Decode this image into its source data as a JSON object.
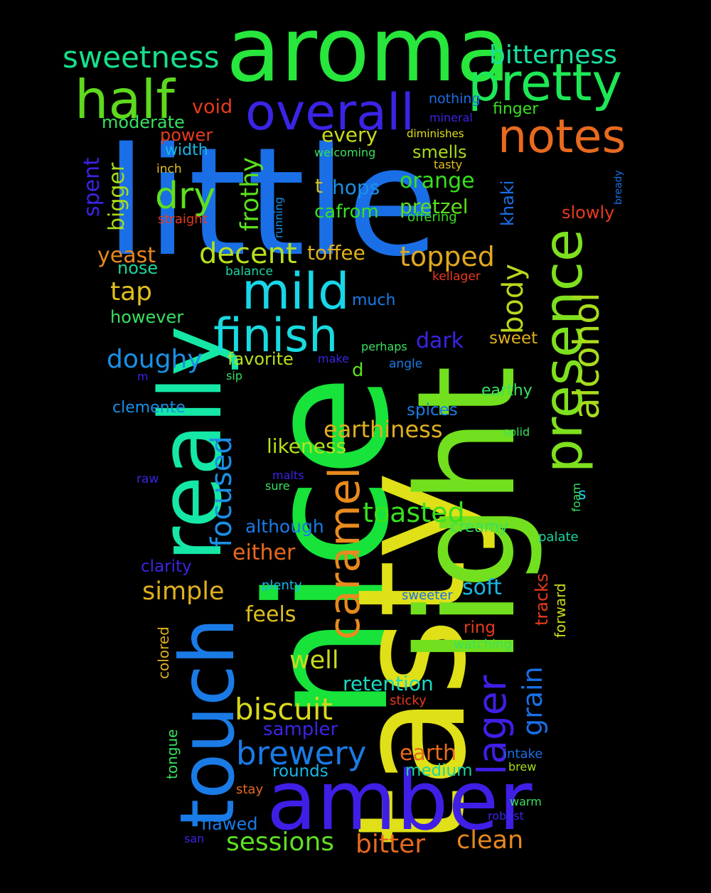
{
  "words": [
    {
      "text": "little",
      "color": "#1a6fe6",
      "vertical": false
    },
    {
      "text": "nice",
      "color": "#17e33a",
      "vertical": true
    },
    {
      "text": "tasty",
      "color": "#e0e018",
      "vertical": true
    },
    {
      "text": "light",
      "color": "#72e01e",
      "vertical": true
    },
    {
      "text": "aroma",
      "color": "#27e63c",
      "vertical": false
    },
    {
      "text": "really",
      "color": "#15e8a6",
      "vertical": true
    },
    {
      "text": "touch",
      "color": "#1a7be6",
      "vertical": true
    },
    {
      "text": "amber",
      "color": "#3f1fe6",
      "vertical": false
    },
    {
      "text": "pretty",
      "color": "#1de855",
      "vertical": false
    },
    {
      "text": "overall",
      "color": "#3a24e6",
      "vertical": false
    },
    {
      "text": "half",
      "color": "#5ed91e",
      "vertical": false
    },
    {
      "text": "notes",
      "color": "#e86a1e",
      "vertical": false
    },
    {
      "text": "presence",
      "color": "#7ee01e",
      "vertical": true
    },
    {
      "text": "finish",
      "color": "#18dbe0",
      "vertical": false
    },
    {
      "text": "mild",
      "color": "#18d6e8",
      "vertical": false
    },
    {
      "text": "alcohol",
      "color": "#a8dc1c",
      "vertical": true
    },
    {
      "text": "caramel",
      "color": "#e88a1e",
      "vertical": true
    },
    {
      "text": "lager",
      "color": "#3f1fe6",
      "vertical": true
    },
    {
      "text": "sweetness",
      "color": "#16e08a",
      "vertical": false
    },
    {
      "text": "bitterness",
      "color": "#16e0a0",
      "vertical": false
    },
    {
      "text": "dry",
      "color": "#5ee01e",
      "vertical": false
    },
    {
      "text": "decent",
      "color": "#b5e01e",
      "vertical": false
    },
    {
      "text": "topped",
      "color": "#e0a81e",
      "vertical": false
    },
    {
      "text": "body",
      "color": "#b8d81c",
      "vertical": true
    },
    {
      "text": "frothy",
      "color": "#5ae01e",
      "vertical": true
    },
    {
      "text": "focused",
      "color": "#1a90e6",
      "vertical": true
    },
    {
      "text": "biscuit",
      "color": "#d8d81c",
      "vertical": false
    },
    {
      "text": "brewery",
      "color": "#1a7be6",
      "vertical": false
    },
    {
      "text": "toasted",
      "color": "#38e01e",
      "vertical": false
    },
    {
      "text": "sessions",
      "color": "#5ee01e",
      "vertical": false
    },
    {
      "text": "bitter",
      "color": "#e86a1e",
      "vertical": false
    },
    {
      "text": "clean",
      "color": "#e8881e",
      "vertical": false
    },
    {
      "text": "grain",
      "color": "#1a6fe6",
      "vertical": true
    },
    {
      "text": "doughy",
      "color": "#1a90e6",
      "vertical": false
    },
    {
      "text": "simple",
      "color": "#e0b01e",
      "vertical": false
    },
    {
      "text": "earthiness",
      "color": "#e0b01e",
      "vertical": false
    },
    {
      "text": "retention",
      "color": "#18dbc0",
      "vertical": false
    },
    {
      "text": "earth",
      "color": "#e86a1e",
      "vertical": false
    },
    {
      "text": "tap",
      "color": "#e0c01e",
      "vertical": false
    },
    {
      "text": "yeast",
      "color": "#e8881e",
      "vertical": false
    },
    {
      "text": "orange",
      "color": "#38e01e",
      "vertical": false
    },
    {
      "text": "pretzel",
      "color": "#5ee01e",
      "vertical": false
    },
    {
      "text": "hops",
      "color": "#1a90e6",
      "vertical": false
    },
    {
      "text": "cafrom",
      "color": "#38e01e",
      "vertical": false
    },
    {
      "text": "toffee",
      "color": "#e0b01e",
      "vertical": false
    },
    {
      "text": "likeness",
      "color": "#b5e01e",
      "vertical": false
    },
    {
      "text": "smells",
      "color": "#a8dc1c",
      "vertical": false
    },
    {
      "text": "every",
      "color": "#c8dc1c",
      "vertical": false
    },
    {
      "text": "spent",
      "color": "#3a24e6",
      "vertical": true
    },
    {
      "text": "bigger",
      "color": "#a8dc1c",
      "vertical": true
    },
    {
      "text": "khaki",
      "color": "#1a6fe6",
      "vertical": true
    },
    {
      "text": "feels",
      "color": "#e0c01e",
      "vertical": false
    },
    {
      "text": "well",
      "color": "#c8dc1c",
      "vertical": false
    },
    {
      "text": "soft",
      "color": "#18b8e6",
      "vertical": false
    },
    {
      "text": "although",
      "color": "#1a7be6",
      "vertical": false
    },
    {
      "text": "either",
      "color": "#e86a1e",
      "vertical": false
    },
    {
      "text": "sampler",
      "color": "#3a24e6",
      "vertical": false
    },
    {
      "text": "dark",
      "color": "#3a24e6",
      "vertical": false
    },
    {
      "text": "favorite",
      "color": "#b5e01e",
      "vertical": false
    },
    {
      "text": "void",
      "color": "#e83a1e",
      "vertical": false
    },
    {
      "text": "moderate",
      "color": "#38e060",
      "vertical": false
    },
    {
      "text": "power",
      "color": "#e83a1e",
      "vertical": false
    },
    {
      "text": "width",
      "color": "#18b8e6",
      "vertical": false
    },
    {
      "text": "finger",
      "color": "#38e01e",
      "vertical": false
    },
    {
      "text": "slowly",
      "color": "#e83a1e",
      "vertical": false
    },
    {
      "text": "nose",
      "color": "#18d6a0",
      "vertical": false
    },
    {
      "text": "however",
      "color": "#38e060",
      "vertical": false
    },
    {
      "text": "much",
      "color": "#1a7be6",
      "vertical": false
    },
    {
      "text": "sweet",
      "color": "#e0b01e",
      "vertical": false
    },
    {
      "text": "d",
      "color": "#5ee01e",
      "vertical": false
    },
    {
      "text": "t",
      "color": "#e0c01e",
      "vertical": false
    },
    {
      "text": "creamy",
      "color": "#38e060",
      "vertical": false
    },
    {
      "text": "earthy",
      "color": "#38e060",
      "vertical": false
    },
    {
      "text": "spices",
      "color": "#1a7be6",
      "vertical": false
    },
    {
      "text": "clemente",
      "color": "#1a90e6",
      "vertical": false
    },
    {
      "text": "clarity",
      "color": "#3a24e6",
      "vertical": false
    },
    {
      "text": "rounds",
      "color": "#18b8e6",
      "vertical": false
    },
    {
      "text": "medium",
      "color": "#18d6a0",
      "vertical": false
    },
    {
      "text": "flawed",
      "color": "#1a7be6",
      "vertical": false
    },
    {
      "text": "tracks",
      "color": "#e83a1e",
      "vertical": true
    },
    {
      "text": "forward",
      "color": "#c8dc1c",
      "vertical": true
    },
    {
      "text": "colored",
      "color": "#e0b01e",
      "vertical": true
    },
    {
      "text": "tongue",
      "color": "#38e060",
      "vertical": true
    },
    {
      "text": "ring",
      "color": "#e83a1e",
      "vertical": false
    },
    {
      "text": "watching",
      "color": "#38e060",
      "vertical": false
    },
    {
      "text": "palate",
      "color": "#18d6a0",
      "vertical": false
    },
    {
      "text": "plenty",
      "color": "#18b8e6",
      "vertical": false
    },
    {
      "text": "sweeter",
      "color": "#1a6fe6",
      "vertical": false
    },
    {
      "text": "sticky",
      "color": "#e83a1e",
      "vertical": false
    },
    {
      "text": "intake",
      "color": "#1a6fe6",
      "vertical": false
    },
    {
      "text": "brew",
      "color": "#a8dc1c",
      "vertical": false
    },
    {
      "text": "warm",
      "color": "#38e060",
      "vertical": false
    },
    {
      "text": "robust",
      "color": "#3a24e6",
      "vertical": false
    },
    {
      "text": "stay",
      "color": "#e86a1e",
      "vertical": false
    },
    {
      "text": "san",
      "color": "#3a24e6",
      "vertical": false
    },
    {
      "text": "nothing",
      "color": "#1a6fe6",
      "vertical": false
    },
    {
      "text": "mineral",
      "color": "#3a24e6",
      "vertical": false
    },
    {
      "text": "diminishes",
      "color": "#e0e018",
      "vertical": false
    },
    {
      "text": "welcoming",
      "color": "#38e060",
      "vertical": false
    },
    {
      "text": "tasty",
      "color": "#e0c01e",
      "vertical": false
    },
    {
      "text": "bready",
      "color": "#1a6fe6",
      "vertical": true
    },
    {
      "text": "inch",
      "color": "#e0c01e",
      "vertical": false
    },
    {
      "text": "straight",
      "color": "#e83a1e",
      "vertical": false
    },
    {
      "text": "running",
      "color": "#1a90e6",
      "vertical": true
    },
    {
      "text": "offering",
      "color": "#38e01e",
      "vertical": false
    },
    {
      "text": "balance",
      "color": "#18d6a0",
      "vertical": false
    },
    {
      "text": "kellager",
      "color": "#e83a1e",
      "vertical": false
    },
    {
      "text": "perhaps",
      "color": "#38e060",
      "vertical": false
    },
    {
      "text": "make",
      "color": "#3a24e6",
      "vertical": false
    },
    {
      "text": "angle",
      "color": "#1a7be6",
      "vertical": false
    },
    {
      "text": "m",
      "color": "#3a24e6",
      "vertical": false
    },
    {
      "text": "sip",
      "color": "#38e060",
      "vertical": false
    },
    {
      "text": "solid",
      "color": "#38e060",
      "vertical": false
    },
    {
      "text": "raw",
      "color": "#3a24e6",
      "vertical": false
    },
    {
      "text": "malts",
      "color": "#3a24e6",
      "vertical": false
    },
    {
      "text": "sure",
      "color": "#38e060",
      "vertical": false
    },
    {
      "text": "foam",
      "color": "#38e060",
      "vertical": true
    },
    {
      "text": "s",
      "color": "#18d6e8",
      "vertical": false
    }
  ]
}
